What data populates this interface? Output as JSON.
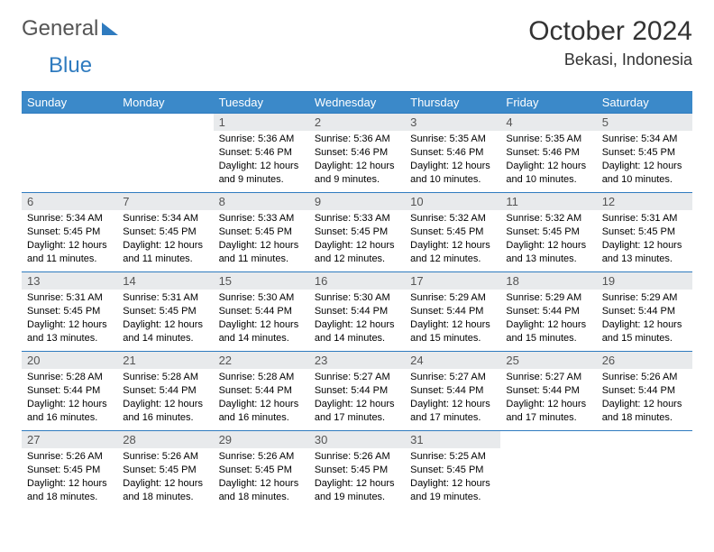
{
  "brand": {
    "part1": "General",
    "part2": "Blue"
  },
  "title": "October 2024",
  "location": "Bekasi, Indonesia",
  "colors": {
    "header_bg": "#3b89c9",
    "header_fg": "#ffffff",
    "daynum_bg": "#e8eaec",
    "rule": "#2f7bbf",
    "logo_gray": "#555555",
    "logo_blue": "#2f7bbf"
  },
  "fonts": {
    "title_size": 30,
    "location_size": 18,
    "header_size": 13,
    "body_size": 11
  },
  "day_headers": [
    "Sunday",
    "Monday",
    "Tuesday",
    "Wednesday",
    "Thursday",
    "Friday",
    "Saturday"
  ],
  "weeks": [
    [
      {
        "n": "",
        "sr": "",
        "ss": "",
        "dl": ""
      },
      {
        "n": "",
        "sr": "",
        "ss": "",
        "dl": ""
      },
      {
        "n": "1",
        "sr": "Sunrise: 5:36 AM",
        "ss": "Sunset: 5:46 PM",
        "dl": "Daylight: 12 hours and 9 minutes."
      },
      {
        "n": "2",
        "sr": "Sunrise: 5:36 AM",
        "ss": "Sunset: 5:46 PM",
        "dl": "Daylight: 12 hours and 9 minutes."
      },
      {
        "n": "3",
        "sr": "Sunrise: 5:35 AM",
        "ss": "Sunset: 5:46 PM",
        "dl": "Daylight: 12 hours and 10 minutes."
      },
      {
        "n": "4",
        "sr": "Sunrise: 5:35 AM",
        "ss": "Sunset: 5:46 PM",
        "dl": "Daylight: 12 hours and 10 minutes."
      },
      {
        "n": "5",
        "sr": "Sunrise: 5:34 AM",
        "ss": "Sunset: 5:45 PM",
        "dl": "Daylight: 12 hours and 10 minutes."
      }
    ],
    [
      {
        "n": "6",
        "sr": "Sunrise: 5:34 AM",
        "ss": "Sunset: 5:45 PM",
        "dl": "Daylight: 12 hours and 11 minutes."
      },
      {
        "n": "7",
        "sr": "Sunrise: 5:34 AM",
        "ss": "Sunset: 5:45 PM",
        "dl": "Daylight: 12 hours and 11 minutes."
      },
      {
        "n": "8",
        "sr": "Sunrise: 5:33 AM",
        "ss": "Sunset: 5:45 PM",
        "dl": "Daylight: 12 hours and 11 minutes."
      },
      {
        "n": "9",
        "sr": "Sunrise: 5:33 AM",
        "ss": "Sunset: 5:45 PM",
        "dl": "Daylight: 12 hours and 12 minutes."
      },
      {
        "n": "10",
        "sr": "Sunrise: 5:32 AM",
        "ss": "Sunset: 5:45 PM",
        "dl": "Daylight: 12 hours and 12 minutes."
      },
      {
        "n": "11",
        "sr": "Sunrise: 5:32 AM",
        "ss": "Sunset: 5:45 PM",
        "dl": "Daylight: 12 hours and 13 minutes."
      },
      {
        "n": "12",
        "sr": "Sunrise: 5:31 AM",
        "ss": "Sunset: 5:45 PM",
        "dl": "Daylight: 12 hours and 13 minutes."
      }
    ],
    [
      {
        "n": "13",
        "sr": "Sunrise: 5:31 AM",
        "ss": "Sunset: 5:45 PM",
        "dl": "Daylight: 12 hours and 13 minutes."
      },
      {
        "n": "14",
        "sr": "Sunrise: 5:31 AM",
        "ss": "Sunset: 5:45 PM",
        "dl": "Daylight: 12 hours and 14 minutes."
      },
      {
        "n": "15",
        "sr": "Sunrise: 5:30 AM",
        "ss": "Sunset: 5:44 PM",
        "dl": "Daylight: 12 hours and 14 minutes."
      },
      {
        "n": "16",
        "sr": "Sunrise: 5:30 AM",
        "ss": "Sunset: 5:44 PM",
        "dl": "Daylight: 12 hours and 14 minutes."
      },
      {
        "n": "17",
        "sr": "Sunrise: 5:29 AM",
        "ss": "Sunset: 5:44 PM",
        "dl": "Daylight: 12 hours and 15 minutes."
      },
      {
        "n": "18",
        "sr": "Sunrise: 5:29 AM",
        "ss": "Sunset: 5:44 PM",
        "dl": "Daylight: 12 hours and 15 minutes."
      },
      {
        "n": "19",
        "sr": "Sunrise: 5:29 AM",
        "ss": "Sunset: 5:44 PM",
        "dl": "Daylight: 12 hours and 15 minutes."
      }
    ],
    [
      {
        "n": "20",
        "sr": "Sunrise: 5:28 AM",
        "ss": "Sunset: 5:44 PM",
        "dl": "Daylight: 12 hours and 16 minutes."
      },
      {
        "n": "21",
        "sr": "Sunrise: 5:28 AM",
        "ss": "Sunset: 5:44 PM",
        "dl": "Daylight: 12 hours and 16 minutes."
      },
      {
        "n": "22",
        "sr": "Sunrise: 5:28 AM",
        "ss": "Sunset: 5:44 PM",
        "dl": "Daylight: 12 hours and 16 minutes."
      },
      {
        "n": "23",
        "sr": "Sunrise: 5:27 AM",
        "ss": "Sunset: 5:44 PM",
        "dl": "Daylight: 12 hours and 17 minutes."
      },
      {
        "n": "24",
        "sr": "Sunrise: 5:27 AM",
        "ss": "Sunset: 5:44 PM",
        "dl": "Daylight: 12 hours and 17 minutes."
      },
      {
        "n": "25",
        "sr": "Sunrise: 5:27 AM",
        "ss": "Sunset: 5:44 PM",
        "dl": "Daylight: 12 hours and 17 minutes."
      },
      {
        "n": "26",
        "sr": "Sunrise: 5:26 AM",
        "ss": "Sunset: 5:44 PM",
        "dl": "Daylight: 12 hours and 18 minutes."
      }
    ],
    [
      {
        "n": "27",
        "sr": "Sunrise: 5:26 AM",
        "ss": "Sunset: 5:45 PM",
        "dl": "Daylight: 12 hours and 18 minutes."
      },
      {
        "n": "28",
        "sr": "Sunrise: 5:26 AM",
        "ss": "Sunset: 5:45 PM",
        "dl": "Daylight: 12 hours and 18 minutes."
      },
      {
        "n": "29",
        "sr": "Sunrise: 5:26 AM",
        "ss": "Sunset: 5:45 PM",
        "dl": "Daylight: 12 hours and 18 minutes."
      },
      {
        "n": "30",
        "sr": "Sunrise: 5:26 AM",
        "ss": "Sunset: 5:45 PM",
        "dl": "Daylight: 12 hours and 19 minutes."
      },
      {
        "n": "31",
        "sr": "Sunrise: 5:25 AM",
        "ss": "Sunset: 5:45 PM",
        "dl": "Daylight: 12 hours and 19 minutes."
      },
      {
        "n": "",
        "sr": "",
        "ss": "",
        "dl": ""
      },
      {
        "n": "",
        "sr": "",
        "ss": "",
        "dl": ""
      }
    ]
  ]
}
